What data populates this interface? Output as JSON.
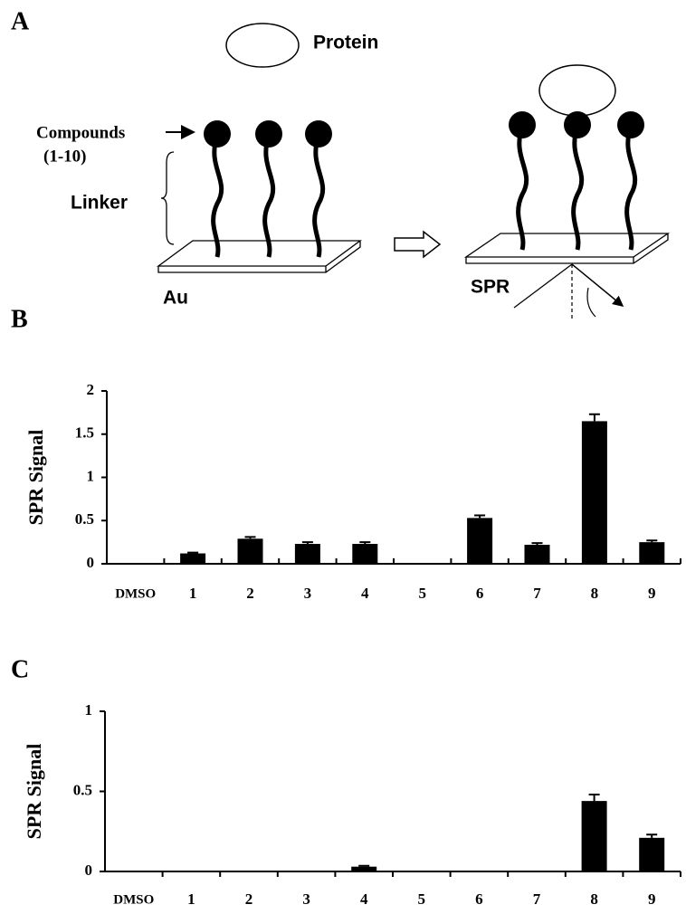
{
  "diagram": {
    "panel": "A",
    "protein": "Protein",
    "compounds": "Compounds",
    "range": "(1-10)",
    "linker": "Linker",
    "au": "Au",
    "spr": "SPR"
  },
  "chart_data": [
    {
      "type": "bar",
      "panel": "B",
      "ylabel": "SPR Signal",
      "color": "#000000",
      "categories": [
        "DMSO",
        "1",
        "2",
        "3",
        "4",
        "5",
        "6",
        "7",
        "8",
        "9"
      ],
      "values": [
        0,
        0.12,
        0.29,
        0.23,
        0.23,
        0,
        0.53,
        0.22,
        1.65,
        0.25
      ],
      "errors": [
        0,
        0.01,
        0.02,
        0.02,
        0.02,
        0,
        0.03,
        0.02,
        0.08,
        0.02
      ],
      "ylim": [
        0,
        2
      ],
      "yticks": [
        0,
        0.5,
        1,
        1.5,
        2
      ]
    },
    {
      "type": "bar",
      "panel": "C",
      "ylabel": "SPR Signal",
      "color": "#000000",
      "categories": [
        "DMSO",
        "1",
        "2",
        "3",
        "4",
        "5",
        "6",
        "7",
        "8",
        "9"
      ],
      "values": [
        0,
        0,
        0,
        0,
        0.03,
        0,
        0,
        0,
        0.44,
        0.21
      ],
      "errors": [
        0,
        0,
        0,
        0,
        0.005,
        0,
        0,
        0,
        0.04,
        0.02
      ],
      "ylim": [
        0,
        1
      ],
      "yticks": [
        0,
        0.5,
        1
      ]
    }
  ]
}
